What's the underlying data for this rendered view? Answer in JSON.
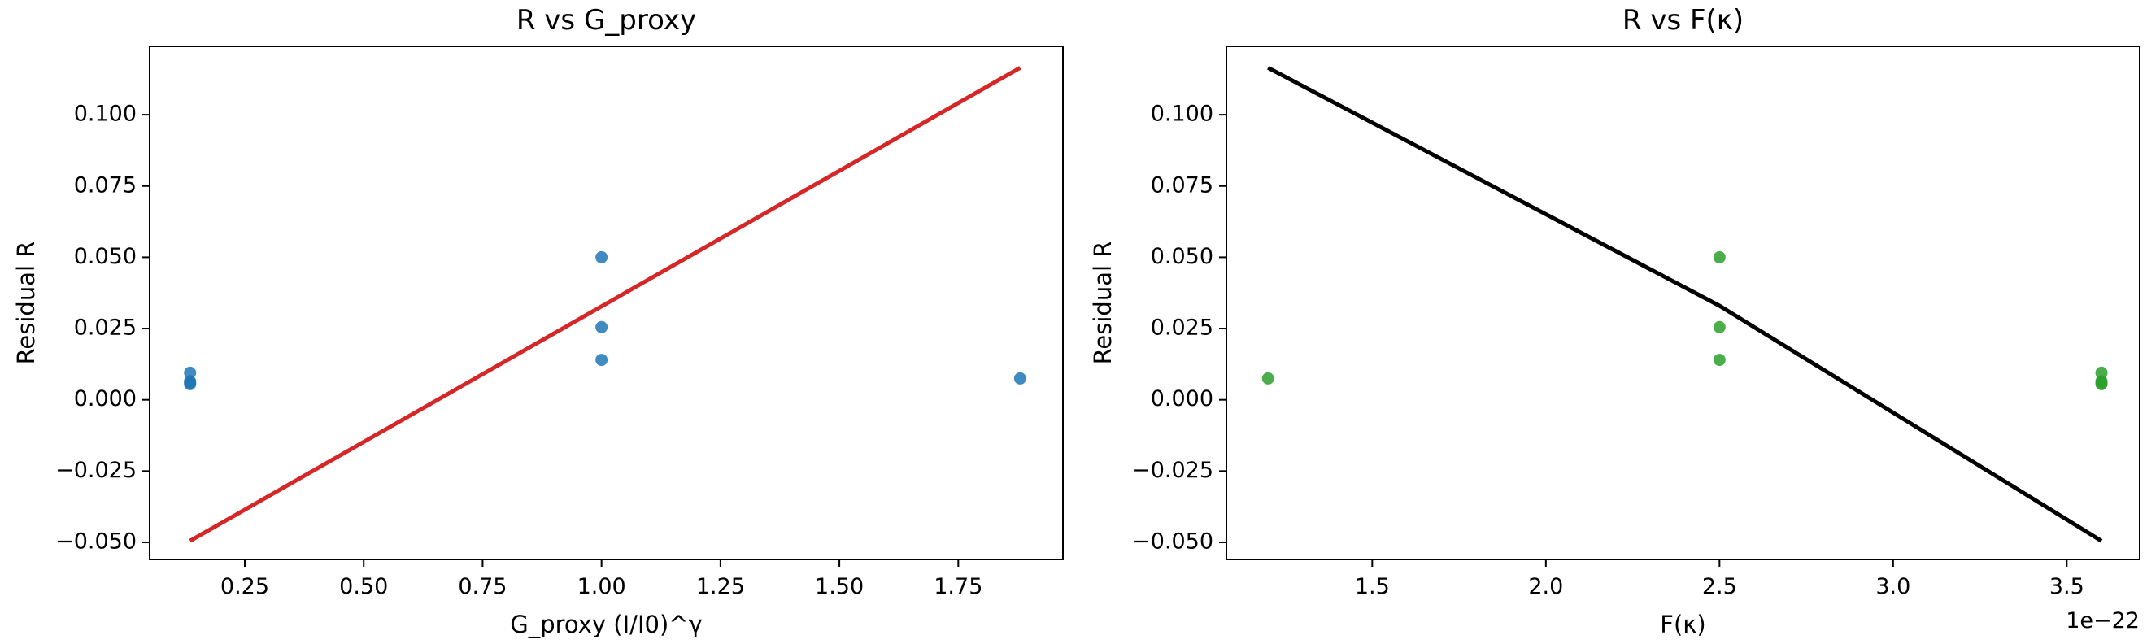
{
  "chart_data": [
    {
      "type": "scatter",
      "title": "R vs G_proxy",
      "xlabel": "G_proxy (I/I0)^γ",
      "ylabel": "Residual R",
      "xlim": [
        0.05,
        1.97
      ],
      "ylim": [
        -0.056,
        0.124
      ],
      "x_ticks": [
        0.25,
        0.5,
        0.75,
        1.0,
        1.25,
        1.5,
        1.75
      ],
      "x_tick_labels": [
        "0.25",
        "0.50",
        "0.75",
        "1.00",
        "1.25",
        "1.50",
        "1.75"
      ],
      "y_ticks": [
        -0.05,
        -0.025,
        0.0,
        0.025,
        0.05,
        0.075,
        0.1
      ],
      "y_tick_labels": [
        "−0.050",
        "−0.025",
        "0.000",
        "0.025",
        "0.050",
        "0.075",
        "0.100"
      ],
      "x_offset_label": "",
      "grid": false,
      "marker_color": "#1f77b4",
      "line_color": "#d62728",
      "points": [
        {
          "x": 0.135,
          "y": 0.0095
        },
        {
          "x": 0.135,
          "y": 0.0065
        },
        {
          "x": 0.135,
          "y": 0.006
        },
        {
          "x": 0.135,
          "y": 0.0055
        },
        {
          "x": 1.0,
          "y": 0.05
        },
        {
          "x": 1.0,
          "y": 0.0255
        },
        {
          "x": 1.0,
          "y": 0.014
        },
        {
          "x": 1.88,
          "y": 0.0075
        }
      ],
      "fit_line": [
        {
          "x": 0.135,
          "y": -0.0495
        },
        {
          "x": 1.88,
          "y": 0.1165
        }
      ]
    },
    {
      "type": "scatter",
      "title": "R vs F(κ)",
      "xlabel": "F(κ)",
      "ylabel": "Residual R",
      "xlim": [
        1.08,
        3.71
      ],
      "ylim": [
        -0.056,
        0.124
      ],
      "x_ticks": [
        1.5,
        2.0,
        2.5,
        3.0,
        3.5
      ],
      "x_tick_labels": [
        "1.5",
        "2.0",
        "2.5",
        "3.0",
        "3.5"
      ],
      "y_ticks": [
        -0.05,
        -0.025,
        0.0,
        0.025,
        0.05,
        0.075,
        0.1
      ],
      "y_tick_labels": [
        "−0.050",
        "−0.025",
        "0.000",
        "0.025",
        "0.050",
        "0.075",
        "0.100"
      ],
      "x_offset_label": "1e−22",
      "grid": false,
      "marker_color": "#2ca02c",
      "line_color": "#000000",
      "points": [
        {
          "x": 1.2,
          "y": 0.0075
        },
        {
          "x": 2.5,
          "y": 0.05
        },
        {
          "x": 2.5,
          "y": 0.0255
        },
        {
          "x": 2.5,
          "y": 0.014
        },
        {
          "x": 3.6,
          "y": 0.0095
        },
        {
          "x": 3.6,
          "y": 0.0065
        },
        {
          "x": 3.6,
          "y": 0.006
        },
        {
          "x": 3.6,
          "y": 0.0055
        }
      ],
      "fit_line": [
        {
          "x": 1.2,
          "y": 0.1165
        },
        {
          "x": 2.5,
          "y": 0.033
        },
        {
          "x": 3.6,
          "y": -0.0495
        }
      ]
    }
  ]
}
